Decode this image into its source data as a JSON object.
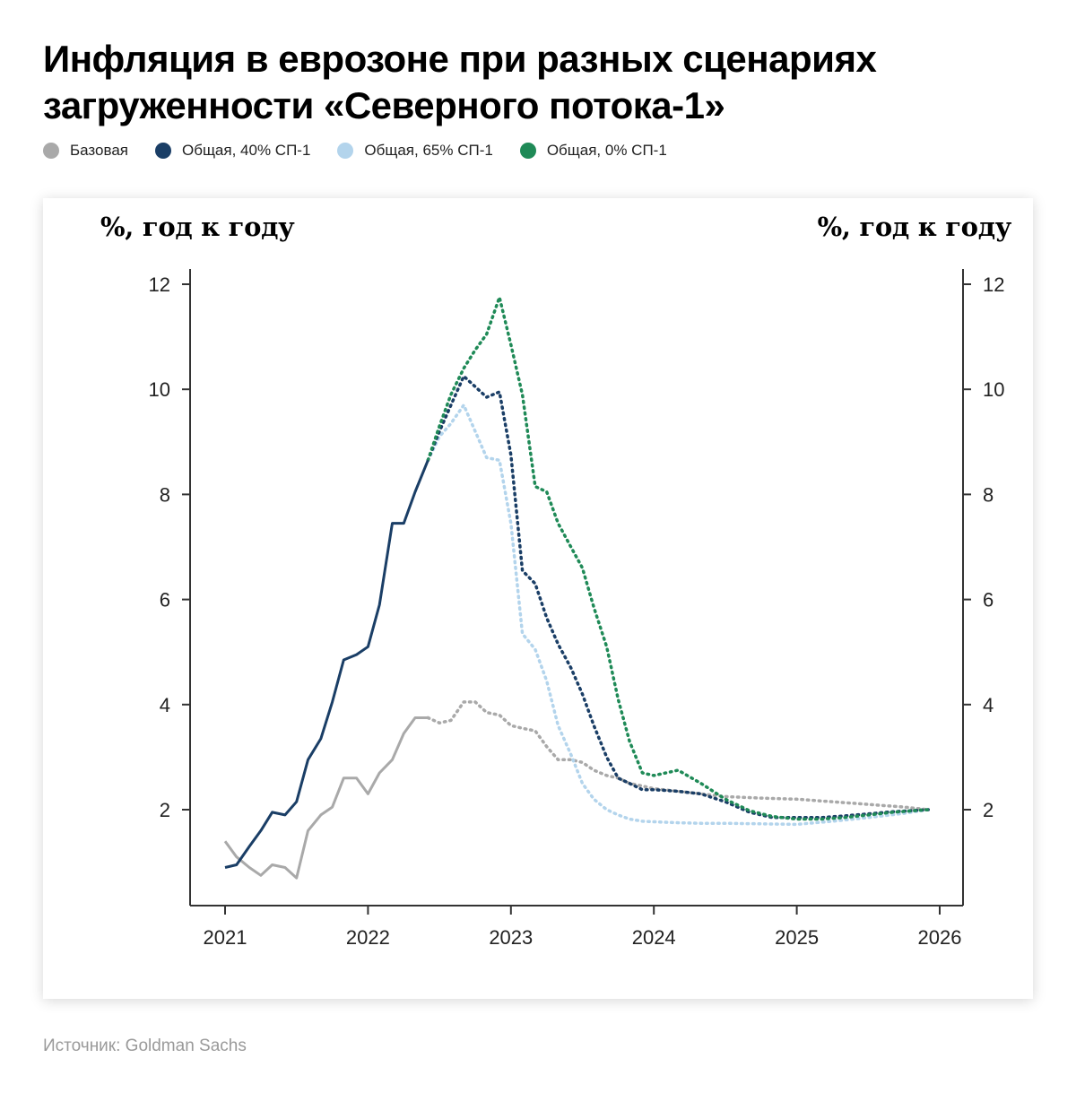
{
  "title": "Инфляция в еврозоне при разных сценариях загруженности «Северного потока-1»",
  "source": "Источник: Goldman Sachs",
  "chart_data": {
    "type": "line",
    "ylabel_left": "%, год к году",
    "ylabel_right": "%, год к году",
    "ylim": [
      0.3,
      12.3
    ],
    "yticks": [
      2,
      4,
      6,
      8,
      10,
      12
    ],
    "xlim": [
      2020.76,
      2026.17
    ],
    "xticks": [
      2021,
      2022,
      2023,
      2024,
      2025,
      2026
    ],
    "grid": false,
    "legend_position": "top-left",
    "series": [
      {
        "name": "Базовая",
        "color": "#a9a9a9",
        "solid": {
          "x": [
            2021.0,
            2021.08,
            2021.17,
            2021.25,
            2021.33,
            2021.42,
            2021.5,
            2021.58,
            2021.67,
            2021.75,
            2021.83,
            2021.92,
            2022.0,
            2022.08,
            2022.17,
            2022.25,
            2022.33,
            2022.42
          ],
          "y": [
            1.4,
            1.1,
            0.9,
            0.75,
            0.95,
            0.9,
            0.7,
            1.6,
            1.9,
            2.05,
            2.6,
            2.6,
            2.3,
            2.7,
            2.95,
            3.45,
            3.75,
            3.75
          ]
        },
        "dotted": {
          "x": [
            2022.42,
            2022.5,
            2022.58,
            2022.67,
            2022.75,
            2022.83,
            2022.92,
            2023.0,
            2023.08,
            2023.17,
            2023.25,
            2023.33,
            2023.42,
            2023.5,
            2023.58,
            2023.67,
            2023.75,
            2023.83,
            2023.92,
            2024.0,
            2024.17,
            2024.33,
            2024.5,
            2024.75,
            2025.0,
            2025.25,
            2025.5,
            2025.75,
            2025.92
          ],
          "y": [
            3.75,
            3.65,
            3.7,
            4.05,
            4.05,
            3.85,
            3.8,
            3.6,
            3.55,
            3.5,
            3.2,
            2.95,
            2.95,
            2.9,
            2.75,
            2.65,
            2.6,
            2.5,
            2.45,
            2.4,
            2.35,
            2.3,
            2.25,
            2.22,
            2.2,
            2.15,
            2.1,
            2.05,
            2.0
          ]
        }
      },
      {
        "name": "Общая, 40% СП-1",
        "color": "#1a3e66",
        "solid": {
          "x": [
            2021.0,
            2021.08,
            2021.17,
            2021.25,
            2021.33,
            2021.42,
            2021.5,
            2021.58,
            2021.67,
            2021.75,
            2021.83,
            2021.92,
            2022.0,
            2022.08,
            2022.17,
            2022.25,
            2022.33,
            2022.42
          ],
          "y": [
            0.9,
            0.95,
            1.3,
            1.6,
            1.95,
            1.9,
            2.15,
            2.95,
            3.35,
            4.05,
            4.85,
            4.95,
            5.1,
            5.9,
            7.45,
            7.45,
            8.05,
            8.65
          ]
        },
        "dotted": {
          "x": [
            2022.42,
            2022.5,
            2022.58,
            2022.67,
            2022.75,
            2022.83,
            2022.92,
            2023.0,
            2023.08,
            2023.17,
            2023.25,
            2023.33,
            2023.42,
            2023.5,
            2023.58,
            2023.67,
            2023.75,
            2023.83,
            2023.92,
            2024.0,
            2024.17,
            2024.33,
            2024.5,
            2024.67,
            2024.83,
            2025.0,
            2025.17,
            2025.33,
            2025.5,
            2025.67,
            2025.92
          ],
          "y": [
            8.65,
            9.2,
            9.7,
            10.25,
            10.05,
            9.85,
            9.95,
            8.75,
            6.55,
            6.3,
            5.65,
            5.15,
            4.7,
            4.2,
            3.6,
            3.0,
            2.6,
            2.5,
            2.38,
            2.38,
            2.35,
            2.3,
            2.15,
            1.95,
            1.85,
            1.85,
            1.85,
            1.88,
            1.92,
            1.96,
            2.0
          ]
        }
      },
      {
        "name": "Общая, 65% СП-1",
        "color": "#b3d4ec",
        "dotted": {
          "x": [
            2022.42,
            2022.5,
            2022.58,
            2022.67,
            2022.75,
            2022.83,
            2022.92,
            2023.0,
            2023.08,
            2023.17,
            2023.25,
            2023.33,
            2023.42,
            2023.5,
            2023.58,
            2023.67,
            2023.75,
            2023.83,
            2023.92,
            2024.0,
            2024.17,
            2024.33,
            2024.5,
            2024.75,
            2025.0,
            2025.25,
            2025.5,
            2025.75,
            2025.92
          ],
          "y": [
            8.65,
            9.1,
            9.35,
            9.7,
            9.2,
            8.7,
            8.65,
            7.45,
            5.35,
            5.05,
            4.45,
            3.6,
            3.05,
            2.5,
            2.2,
            2.0,
            1.9,
            1.82,
            1.78,
            1.77,
            1.75,
            1.74,
            1.74,
            1.73,
            1.72,
            1.78,
            1.85,
            1.93,
            2.0
          ]
        }
      },
      {
        "name": "Общая, 0% СП-1",
        "color": "#1f8a57",
        "dotted": {
          "x": [
            2022.42,
            2022.5,
            2022.58,
            2022.67,
            2022.75,
            2022.83,
            2022.92,
            2023.0,
            2023.08,
            2023.17,
            2023.25,
            2023.33,
            2023.42,
            2023.5,
            2023.58,
            2023.67,
            2023.75,
            2023.83,
            2023.92,
            2024.0,
            2024.17,
            2024.33,
            2024.5,
            2024.67,
            2024.83,
            2025.0,
            2025.17,
            2025.33,
            2025.5,
            2025.67,
            2025.92
          ],
          "y": [
            8.65,
            9.3,
            9.9,
            10.4,
            10.75,
            11.05,
            11.75,
            10.85,
            9.9,
            8.15,
            8.05,
            7.45,
            7.0,
            6.6,
            5.85,
            5.1,
            4.1,
            3.3,
            2.7,
            2.65,
            2.75,
            2.5,
            2.2,
            1.98,
            1.87,
            1.82,
            1.82,
            1.85,
            1.9,
            1.95,
            2.0
          ]
        }
      }
    ]
  }
}
